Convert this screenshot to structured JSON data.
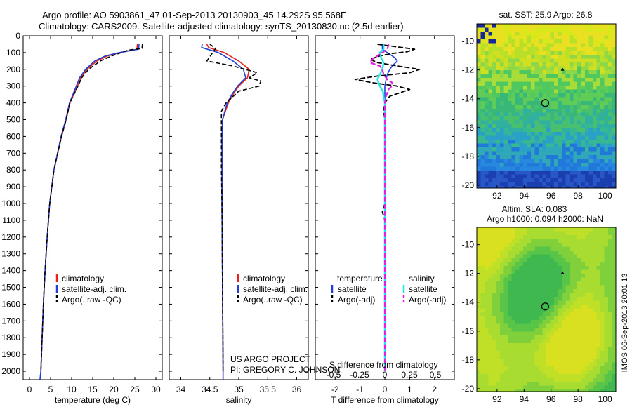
{
  "figure": {
    "title_line1": "Argo profile: AO 5903861_47 01-Sep-2013 20130903_45 14.292S 95.568E",
    "title_line2": "Climatology: CARS2009. Satellite-adjusted climatology: synTS_20130830.nc (2.5d earlier)",
    "footer_credit": "IMOS 06-Sep-2013 20:01:13",
    "colors": {
      "clim": "#e8221b",
      "satadj": "#1f3fd8",
      "argo": "#000000",
      "sat_salt": "#20e8e8",
      "argo_salt": "#e020e0"
    }
  },
  "chart_data": [
    {
      "type": "line",
      "panel": "temperature",
      "xlabel": "temperature (deg C)",
      "ylim": [
        0,
        2050
      ],
      "xlim": [
        -1.5,
        31.5
      ],
      "x_ticks": [
        0,
        5,
        10,
        15,
        20,
        25,
        30
      ],
      "y_ticks": [
        0,
        100,
        200,
        300,
        400,
        500,
        600,
        700,
        800,
        900,
        1000,
        1100,
        1200,
        1300,
        1400,
        1500,
        1600,
        1700,
        1800,
        1900,
        2000
      ],
      "legend": [
        "climatology",
        "satellite-adj. clim.",
        "Argo(..raw -QC)"
      ],
      "series": [
        {
          "name": "climatology",
          "depth": [
            50,
            80,
            100,
            120,
            150,
            200,
            250,
            300,
            400,
            500,
            600,
            800,
            1000,
            1200,
            1400,
            1600,
            1800,
            2000,
            2050
          ],
          "values": [
            25.6,
            25.5,
            21.5,
            18.5,
            16,
            13.6,
            12.2,
            11.4,
            9.6,
            8.7,
            7.6,
            5.8,
            4.8,
            4.2,
            3.7,
            3.3,
            3.0,
            2.7,
            2.5
          ]
        },
        {
          "name": "satellite-adj. clim.",
          "depth": [
            50,
            80,
            100,
            120,
            150,
            200,
            250,
            300,
            400,
            500,
            600,
            800,
            1000,
            1200,
            1400,
            1600,
            1800,
            2000,
            2050
          ],
          "values": [
            26.0,
            25.9,
            21.3,
            18.0,
            15.5,
            13.3,
            11.9,
            11.1,
            9.5,
            8.6,
            7.5,
            5.8,
            4.8,
            4.2,
            3.7,
            3.3,
            3.0,
            2.7,
            2.5
          ]
        },
        {
          "name": "Argo(..raw -QC)",
          "depth": [
            50,
            75,
            85,
            100,
            120,
            150,
            200,
            250,
            300,
            400,
            500,
            600,
            800,
            1000,
            1200,
            1400,
            1600,
            1800,
            2000
          ],
          "values": [
            26.8,
            26.7,
            23.5,
            21.8,
            19.5,
            16.8,
            14.0,
            12.4,
            11.5,
            9.6,
            8.7,
            7.6,
            5.8,
            4.8,
            4.2,
            3.7,
            3.3,
            3.0,
            2.7
          ]
        }
      ]
    },
    {
      "type": "line",
      "panel": "salinity",
      "xlabel": "salinity",
      "ylim": [
        0,
        2050
      ],
      "xlim": [
        33.8,
        36.2
      ],
      "x_ticks": [
        34,
        34.5,
        35,
        35.5,
        36
      ],
      "legend": [
        "climatology",
        "satellite-adj. clim.",
        "Argo(..raw -QC)"
      ],
      "annotation": [
        "US ARGO PROJECT",
        "PI: GREGORY C. JOHNSON"
      ],
      "series": [
        {
          "name": "climatology",
          "depth": [
            50,
            70,
            100,
            150,
            200,
            250,
            300,
            350,
            400,
            500,
            600,
            800,
            1000,
            1500,
            2000,
            2050
          ],
          "values": [
            34.45,
            34.48,
            34.75,
            35.0,
            35.18,
            35.15,
            35.0,
            34.9,
            34.82,
            34.72,
            34.72,
            34.72,
            34.71,
            34.72,
            34.73,
            34.73
          ]
        },
        {
          "name": "satellite-adj. clim.",
          "depth": [
            50,
            70,
            100,
            150,
            200,
            250,
            300,
            350,
            400,
            500,
            600,
            800,
            1000,
            1500,
            2000,
            2050
          ],
          "values": [
            34.37,
            34.36,
            34.65,
            34.9,
            35.08,
            35.12,
            34.98,
            34.88,
            34.8,
            34.72,
            34.71,
            34.71,
            34.71,
            34.72,
            34.73,
            34.73
          ]
        },
        {
          "name": "Argo(..raw -QC)",
          "depth": [
            50,
            75,
            100,
            150,
            180,
            220,
            250,
            270,
            300,
            330,
            400,
            450,
            500,
            600,
            800,
            1000,
            1500,
            2000
          ],
          "values": [
            34.5,
            34.6,
            34.55,
            34.45,
            34.9,
            35.32,
            35.18,
            35.38,
            35.35,
            35.0,
            34.78,
            34.7,
            34.7,
            34.7,
            34.7,
            34.71,
            34.72,
            34.73
          ]
        }
      ]
    },
    {
      "type": "line",
      "panel": "difference",
      "xlabel": "T difference from climatology",
      "x_label_top": "S difference from climatology",
      "ylim": [
        0,
        2050
      ],
      "xlim": [
        -2.8,
        2.8
      ],
      "x_ticks": [
        -2,
        -1,
        0,
        1,
        2
      ],
      "s_ticks_labels": [
        "-0.5",
        "-0.25",
        "0",
        "0.25",
        "0.5"
      ],
      "legend_headers": [
        "temperature",
        "salinity"
      ],
      "legend": [
        "satellite",
        "Argo(-adj)",
        "satellite",
        "Argo(-adj)"
      ],
      "series": [
        {
          "name": "T satellite",
          "depth": [
            50,
            80,
            100,
            130,
            150,
            180,
            200,
            230,
            260,
            300,
            400,
            500,
            1000,
            2000
          ],
          "values": [
            -0.1,
            -0.1,
            0.1,
            0.4,
            0.5,
            0.3,
            0.2,
            0.1,
            0.05,
            0.0,
            0.0,
            0.0,
            0.0,
            0.0
          ]
        },
        {
          "name": "T Argo(-adj)",
          "depth": [
            50,
            80,
            95,
            105,
            120,
            140,
            160,
            180,
            200,
            220,
            240,
            260,
            280,
            300,
            320,
            340,
            360,
            380,
            400,
            450,
            500,
            1000,
            1050,
            1100,
            1500,
            2000
          ],
          "values": [
            -0.3,
            1.2,
            0.9,
            0.3,
            -0.2,
            -0.6,
            -0.3,
            0.5,
            1.4,
            1.0,
            -0.3,
            -1.2,
            -0.5,
            0.5,
            1.0,
            0.6,
            0.2,
            0.1,
            0.0,
            -0.05,
            0.0,
            0.0,
            -0.1,
            0.0,
            0.0,
            0.0
          ]
        },
        {
          "name": "S satellite",
          "depth": [
            50,
            80,
            100,
            130,
            160,
            200,
            230,
            260,
            300,
            330,
            360,
            400,
            500,
            1000,
            2000
          ],
          "values": [
            -0.05,
            -0.05,
            -0.2,
            -0.15,
            -0.05,
            -0.1,
            -0.2,
            -0.3,
            -0.2,
            -0.08,
            -0.05,
            0.0,
            0.0,
            0.0,
            0.0
          ]
        },
        {
          "name": "S Argo(-adj)",
          "depth": [
            50,
            80,
            100,
            140,
            160,
            180,
            200,
            230,
            260,
            280,
            300,
            320,
            340,
            360,
            400,
            500,
            2000
          ],
          "values": [
            0.15,
            0.1,
            -0.1,
            -0.5,
            -0.6,
            -0.2,
            -0.1,
            -0.05,
            0.1,
            0.3,
            0.28,
            0.15,
            0.1,
            0.05,
            0.0,
            0.0,
            0.0
          ]
        }
      ]
    },
    {
      "type": "heatmap",
      "panel": "sst-map",
      "title": "sat. SST: 25.9 Argo: 26.8",
      "x_ticks": [
        92,
        94,
        96,
        98,
        100
      ],
      "y_ticks": [
        -10,
        -12,
        -14,
        -16,
        -18,
        -20
      ],
      "xlim": [
        90.5,
        100.8
      ],
      "ylim": [
        -20.2,
        -8.8
      ],
      "argo_position": [
        95.568,
        -14.292
      ]
    },
    {
      "type": "heatmap",
      "panel": "sla-map",
      "title_line1": "Altim. SLA: 0.083",
      "title_line2": "Argo h1000: 0.094 h2000: NaN",
      "x_ticks": [
        92,
        94,
        96,
        98,
        100
      ],
      "y_ticks": [
        -10,
        -12,
        -14,
        -16,
        -18,
        -20
      ],
      "xlim": [
        90.5,
        100.8
      ],
      "ylim": [
        -20.2,
        -8.8
      ],
      "argo_position": [
        95.568,
        -14.292
      ]
    }
  ]
}
